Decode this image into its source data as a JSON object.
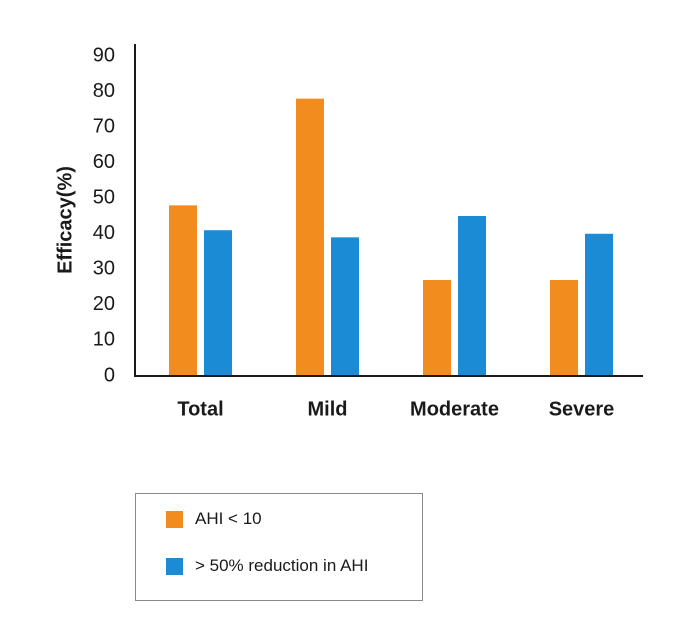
{
  "chart_data": {
    "type": "bar",
    "categories": [
      "Total",
      "Mild",
      "Moderate",
      "Severe"
    ],
    "series": [
      {
        "name": "AHI < 10",
        "color": "#f28c1e",
        "values": [
          48,
          78,
          27,
          27
        ]
      },
      {
        "name": "> 50% reduction in AHI",
        "color": "#1a8bd4",
        "values": [
          41,
          39,
          45,
          40
        ]
      }
    ],
    "title": "",
    "xlabel": "",
    "ylabel": "Efficacy(%)",
    "ylim": [
      0,
      90
    ],
    "yticks": [
      0,
      10,
      20,
      30,
      40,
      50,
      60,
      70,
      80,
      90
    ],
    "grid": false,
    "legend_position": "bottom-left"
  }
}
